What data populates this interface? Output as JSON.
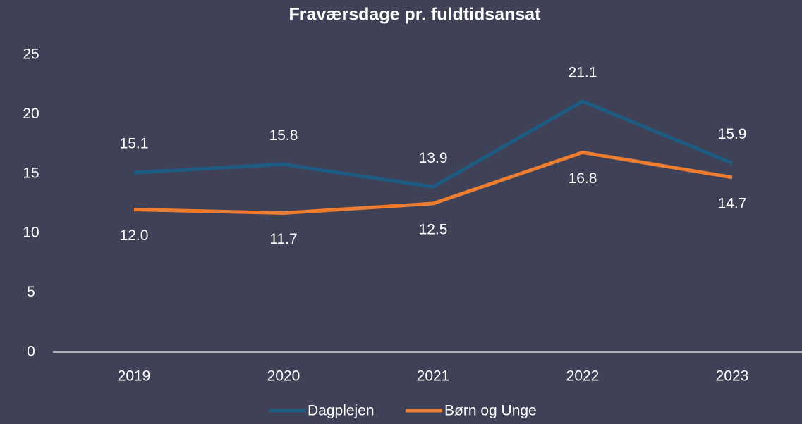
{
  "chart_data": {
    "type": "line",
    "title": "Fraværsdage pr. fuldtidsansat",
    "categories": [
      "2019",
      "2020",
      "2021",
      "2022",
      "2023"
    ],
    "series": [
      {
        "name": "Dagplejen",
        "color": "#1d5b82",
        "values": [
          15.1,
          15.8,
          13.9,
          21.1,
          15.9
        ],
        "value_labels": [
          "15.1",
          "15.8",
          "13.9",
          "21.1",
          "15.9"
        ]
      },
      {
        "name": "Børn og Unge",
        "color": "#ed7d31",
        "values": [
          12.0,
          11.7,
          12.5,
          16.8,
          14.7
        ],
        "value_labels": [
          "12.0",
          "11.7",
          "12.5",
          "16.8",
          "14.7"
        ]
      }
    ],
    "ylim": [
      0,
      25
    ],
    "yticks": [
      0,
      5,
      10,
      15,
      20,
      25
    ],
    "grid": false,
    "legend": "bottom"
  }
}
